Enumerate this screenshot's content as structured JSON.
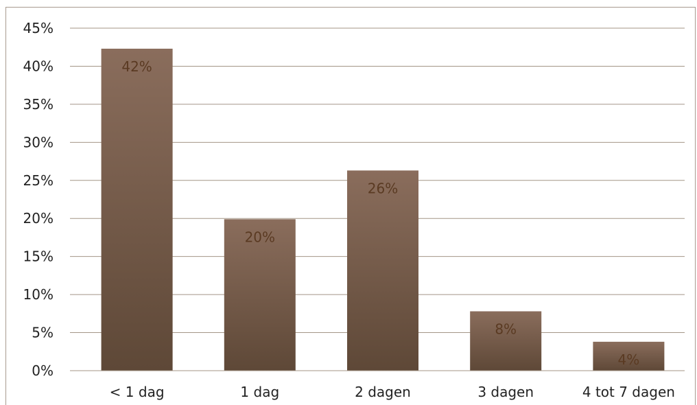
{
  "chart_data": {
    "type": "bar",
    "categories": [
      "< 1 dag",
      "1 dag",
      "2 dagen",
      "3 dagen",
      "4 tot 7 dagen"
    ],
    "values": [
      42.3,
      19.9,
      26.3,
      7.8,
      3.8
    ],
    "data_labels": [
      "42%",
      "20%",
      "26%",
      "8%",
      "4%"
    ],
    "y_ticks": [
      "0%",
      "5%",
      "10%",
      "15%",
      "20%",
      "25%",
      "30%",
      "35%",
      "40%",
      "45%"
    ],
    "ylim": [
      0,
      45
    ],
    "grid": true,
    "legend": "none",
    "bar_color_top": "#8a6d5c",
    "bar_color_bottom": "#5e4837",
    "gridline_color": "#a39586",
    "label_color": "#5a3a22"
  }
}
